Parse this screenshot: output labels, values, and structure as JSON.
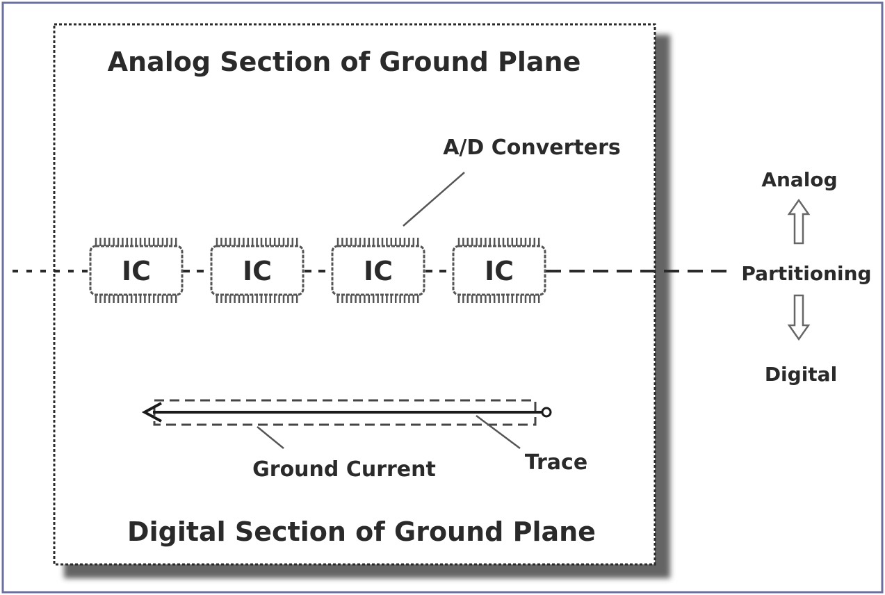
{
  "diagram": {
    "analog_section_label": "Analog Section of Ground Plane",
    "digital_section_label": "Digital Section of Ground Plane",
    "converters_label": "A/D Converters",
    "chip_labels": [
      "IC",
      "IC",
      "IC",
      "IC"
    ],
    "ground_current_label": "Ground Current",
    "trace_label": "Trace",
    "legend": {
      "top": "Analog",
      "middle": "Partitioning",
      "bottom": "Digital"
    }
  }
}
